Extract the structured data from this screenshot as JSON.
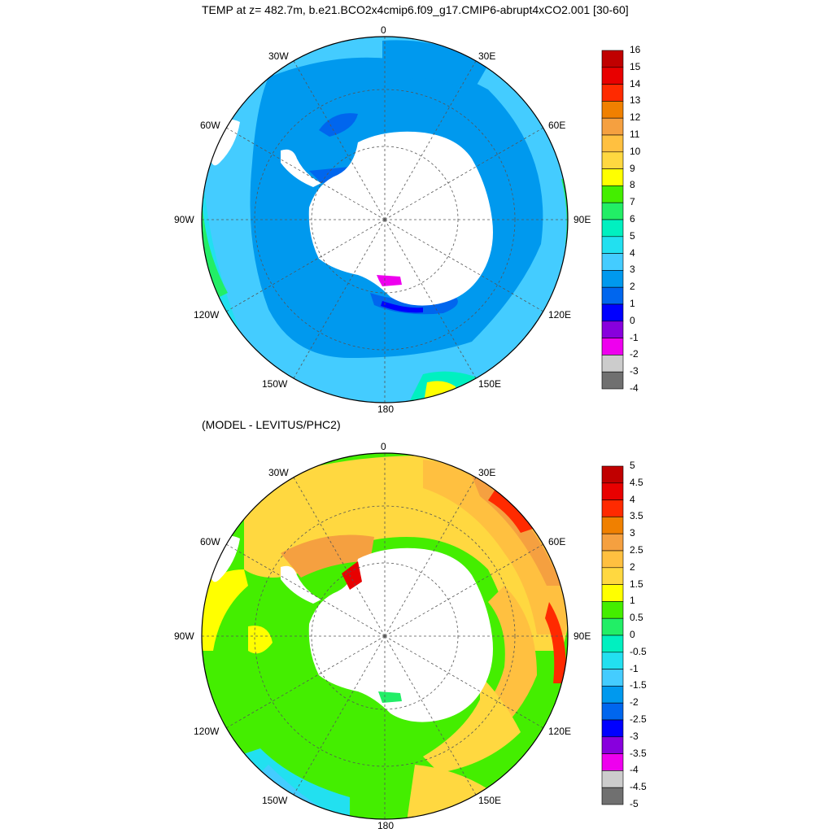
{
  "panels": [
    {
      "title": "TEMP at z= 482.7m, b.e21.BCO2x4cmip6.f09_g17.CMIP6-abrupt4xCO2.001 [30-60]",
      "longitude_labels": [
        "0",
        "30E",
        "60E",
        "90E",
        "120E",
        "150E",
        "180",
        "150W",
        "120W",
        "90W",
        "60W",
        "30W"
      ],
      "colorbar": {
        "labels": [
          "16",
          "15",
          "14",
          "13",
          "12",
          "11",
          "10",
          "9",
          "8",
          "7",
          "6",
          "5",
          "4",
          "3",
          "2",
          "1",
          "0",
          "-1",
          "-2",
          "-3",
          "-4"
        ],
        "colors": [
          "#c00000",
          "#e80000",
          "#ff2a00",
          "#f08000",
          "#f5a040",
          "#ffc040",
          "#ffd840",
          "#ffff00",
          "#44ee00",
          "#22ee66",
          "#00f0c0",
          "#22e0f0",
          "#44ccff",
          "#0099ee",
          "#0066ee",
          "#0000ff",
          "#8800dd",
          "#ee00ee",
          "#cccccc",
          "#707070"
        ]
      }
    },
    {
      "title": "(MODEL - LEVITUS/PHC2)",
      "longitude_labels": [
        "0",
        "30E",
        "60E",
        "90E",
        "120E",
        "150E",
        "180",
        "150W",
        "120W",
        "90W",
        "60W",
        "30W"
      ],
      "colorbar": {
        "labels": [
          "5",
          "4.5",
          "4",
          "3.5",
          "3",
          "2.5",
          "2",
          "1.5",
          "1",
          "0.5",
          "0",
          "-0.5",
          "-1",
          "-1.5",
          "-2",
          "-2.5",
          "-3",
          "-3.5",
          "-4",
          "-4.5",
          "-5"
        ],
        "colors": [
          "#c00000",
          "#e80000",
          "#ff2a00",
          "#f08000",
          "#f5a040",
          "#ffc040",
          "#ffd840",
          "#ffff00",
          "#44ee00",
          "#22ee66",
          "#00f0c0",
          "#22e0f0",
          "#44ccff",
          "#0099ee",
          "#0066ee",
          "#0000ff",
          "#8800dd",
          "#ee00ee",
          "#cccccc",
          "#707070"
        ]
      }
    }
  ]
}
